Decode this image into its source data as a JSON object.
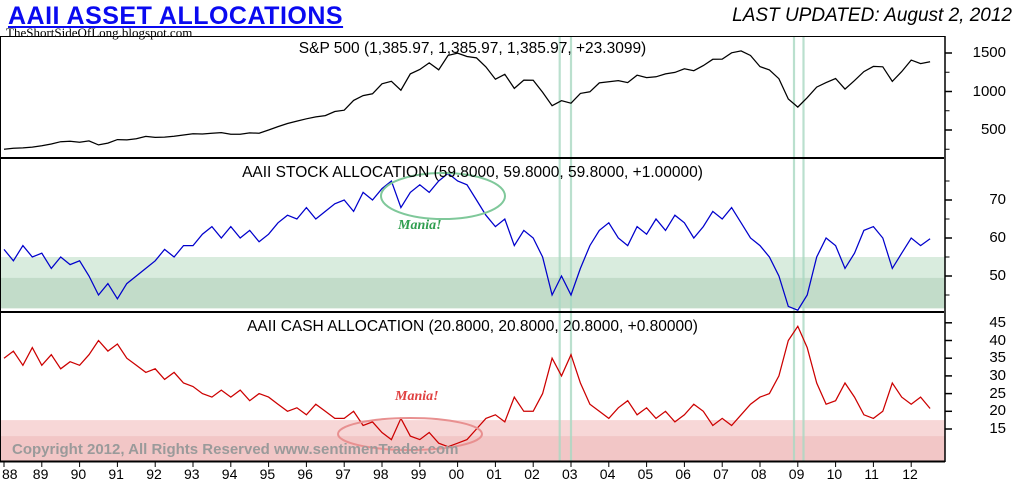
{
  "header": {
    "title": "AAII ASSET ALLOCATIONS",
    "subtitle": "TheShortSideOfLong.blogspot.com",
    "last_updated": "LAST UPDATED:  August 2, 2012"
  },
  "footer": {
    "copyright": "Copyright 2012, All Rights Reserved  www.sentimenTrader.com"
  },
  "panels": [
    {
      "id": "sp500",
      "title": "S&P 500 (1,385.97, 1,385.97, 1,385.97, +23.3099)"
    },
    {
      "id": "stock",
      "title": "AAII STOCK ALLOCATION (59.8000, 59.8000, 59.8000, +1.00000)",
      "annotation": "Mania!"
    },
    {
      "id": "cash",
      "title": "AAII CASH ALLOCATION (20.8000, 20.8000, 20.8000, +0.80000)",
      "annotation": "Mania!"
    }
  ],
  "colors": {
    "title_blue": "#0a0af0",
    "sp500_line": "#000000",
    "stock_line": "#0000cc",
    "cash_line": "#cc0000",
    "stock_band_light": "#d9ecde",
    "stock_band_dark": "#c2dcc9",
    "cash_band_light": "#f7d7d7",
    "cash_band_dark": "#f2c6c6",
    "event_line": "#a9d9c3",
    "copyright_gray": "#9a9a9a"
  },
  "axes": {
    "x_labels": [
      "88",
      "89",
      "90",
      "91",
      "92",
      "93",
      "94",
      "95",
      "96",
      "97",
      "98",
      "99",
      "00",
      "01",
      "02",
      "03",
      "04",
      "05",
      "06",
      "07",
      "08",
      "09",
      "10",
      "11",
      "12"
    ],
    "y": {
      "sp500": {
        "labels": [
          1500,
          1000,
          500
        ],
        "minor": [
          1250,
          750,
          250
        ]
      },
      "stock": {
        "labels": [
          70,
          60,
          50
        ],
        "minor": [
          75,
          65,
          55,
          45
        ]
      },
      "cash": {
        "labels": [
          45,
          40,
          35,
          30,
          25,
          20,
          15
        ],
        "minor": []
      }
    }
  },
  "bands": [
    {
      "panel": "stock",
      "lo": 41.5,
      "hi": 55,
      "color": "#d9ecde"
    },
    {
      "panel": "stock",
      "lo": 41.5,
      "hi": 49.5,
      "color": "#c2dcc9"
    },
    {
      "panel": "cash",
      "lo": 5.5,
      "hi": 17.5,
      "color": "#f7d7d7"
    },
    {
      "panel": "cash",
      "lo": 5.5,
      "hi": 13,
      "color": "#f2c6c6"
    }
  ],
  "event_lines": [
    2002.7,
    2003.0,
    2008.9,
    2009.15
  ],
  "chart_data": [
    {
      "type": "line",
      "panel": "sp500",
      "name": "S&P 500",
      "title": "S&P 500 (1,385.97, 1,385.97, 1,385.97, +23.3099)",
      "color": "#000000",
      "x_start": 1988.0,
      "x_step": 0.25,
      "xlim": [
        1988,
        2012.6
      ],
      "ylim": [
        150,
        1650
      ],
      "last_value": 1385.97,
      "change": 23.3099,
      "values": [
        250,
        262,
        268,
        278,
        295,
        318,
        348,
        353,
        340,
        358,
        306,
        330,
        375,
        371,
        387,
        417,
        404,
        408,
        418,
        435,
        450,
        448,
        459,
        466,
        446,
        444,
        462,
        459,
        500,
        544,
        584,
        615,
        645,
        670,
        687,
        740,
        757,
        885,
        947,
        970,
        1100,
        1133,
        1017,
        1229,
        1286,
        1372,
        1282,
        1469,
        1499,
        1454,
        1436,
        1320,
        1160,
        1224,
        1040,
        1148,
        1147,
        990,
        815,
        880,
        848,
        975,
        996,
        1112,
        1126,
        1141,
        1115,
        1212,
        1180,
        1191,
        1229,
        1248,
        1295,
        1270,
        1336,
        1418,
        1421,
        1503,
        1527,
        1468,
        1323,
        1280,
        1166,
        903,
        798,
        919,
        1057,
        1115,
        1169,
        1031,
        1141,
        1258,
        1326,
        1321,
        1131,
        1258,
        1408,
        1362,
        1386
      ]
    },
    {
      "type": "line",
      "panel": "stock",
      "name": "AAII Stock Allocation (%)",
      "title": "AAII STOCK ALLOCATION (59.8000, 59.8000, 59.8000, +1.00000)",
      "color": "#0000cc",
      "x_start": 1988.0,
      "x_step": 0.25,
      "xlim": [
        1988,
        2012.6
      ],
      "ylim": [
        40,
        78
      ],
      "last_value": 59.8,
      "change": 1.0,
      "values": [
        57,
        54,
        58,
        55,
        56,
        52,
        55,
        53,
        54,
        50,
        45,
        48,
        44,
        48,
        50,
        52,
        54,
        57,
        55,
        58,
        58,
        61,
        63,
        60,
        63,
        60,
        62,
        59,
        61,
        64,
        66,
        65,
        68,
        65,
        67,
        69,
        70,
        67,
        72,
        70,
        73,
        75,
        68,
        72,
        74,
        72,
        75,
        77,
        75,
        74,
        70,
        66,
        63,
        65,
        58,
        62,
        60,
        55,
        45,
        50,
        45,
        52,
        58,
        62,
        64,
        60,
        58,
        63,
        61,
        65,
        62,
        66,
        64,
        60,
        63,
        67,
        65,
        68,
        64,
        60,
        58,
        55,
        50,
        42,
        41,
        45,
        55,
        60,
        58,
        52,
        56,
        62,
        63,
        60,
        52,
        56,
        60,
        58,
        59.8
      ]
    },
    {
      "type": "line",
      "panel": "cash",
      "name": "AAII Cash Allocation (%)",
      "title": "AAII CASH ALLOCATION (20.8000, 20.8000, 20.8000, +0.80000)",
      "color": "#cc0000",
      "x_start": 1988.0,
      "x_step": 0.25,
      "xlim": [
        1988,
        2012.6
      ],
      "ylim": [
        5,
        47
      ],
      "last_value": 20.8,
      "change": 0.8,
      "values": [
        35,
        37,
        33,
        38,
        33,
        36,
        32,
        34,
        33,
        36,
        40,
        37,
        39,
        35,
        33,
        31,
        32,
        29,
        31,
        28,
        27,
        25,
        24,
        26,
        24,
        26,
        23,
        25,
        24,
        22,
        20,
        21,
        19,
        22,
        20,
        18,
        18,
        20,
        16,
        17,
        14,
        12,
        18,
        13,
        12,
        14,
        11,
        10,
        11,
        12,
        15,
        18,
        19,
        17,
        24,
        20,
        20,
        25,
        35,
        30,
        36,
        28,
        22,
        20,
        18,
        21,
        23,
        19,
        21,
        18,
        20,
        17,
        19,
        22,
        20,
        16,
        18,
        16,
        19,
        22,
        24,
        25,
        30,
        40,
        44,
        38,
        28,
        22,
        23,
        28,
        24,
        19,
        18,
        20,
        28,
        24,
        22,
        24,
        20.8
      ]
    }
  ]
}
